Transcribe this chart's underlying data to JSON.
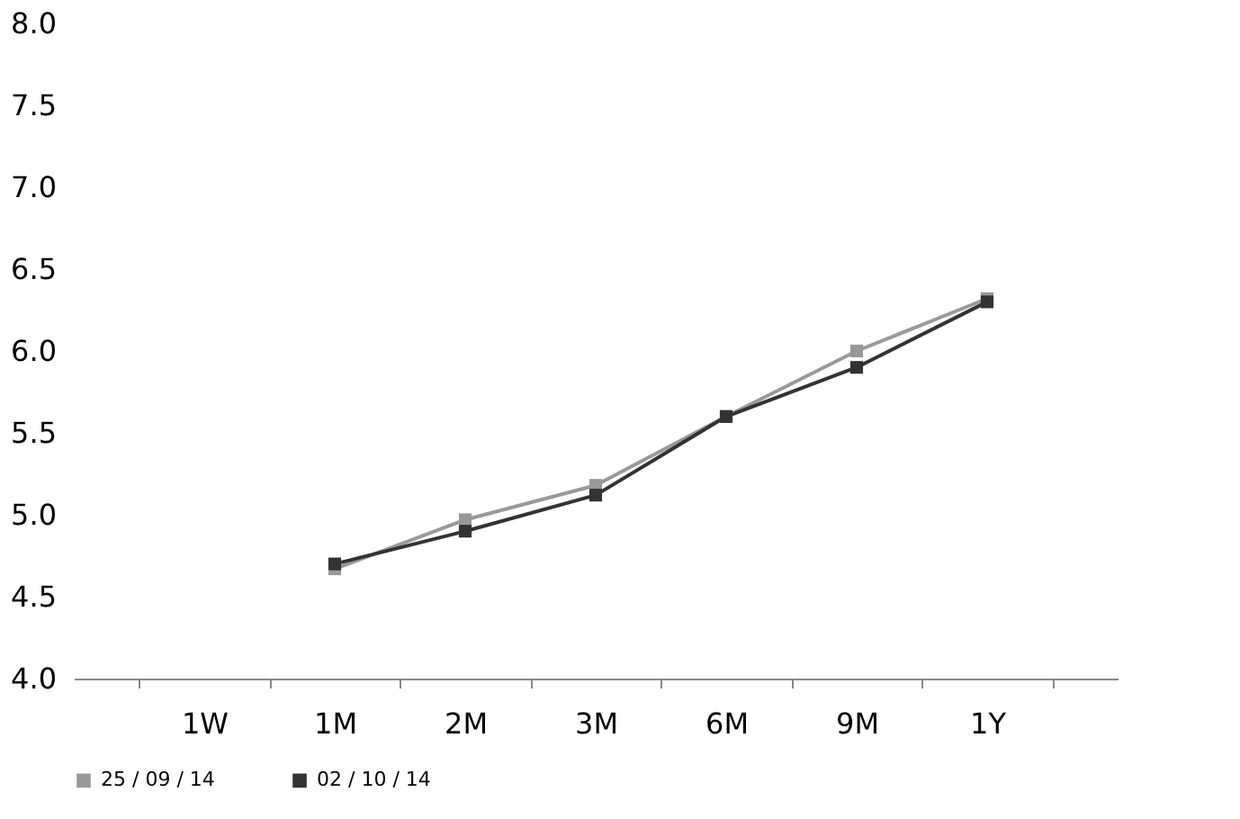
{
  "chart_data": {
    "type": "line",
    "categories": [
      "1W",
      "1M",
      "2M",
      "3M",
      "6M",
      "9M",
      "1Y"
    ],
    "series": [
      {
        "name": "25 / 09 / 14",
        "color": "#999999",
        "values": [
          null,
          4.67,
          4.97,
          5.18,
          5.6,
          6.0,
          6.32
        ]
      },
      {
        "name": "02 / 10 / 14",
        "color": "#333333",
        "values": [
          null,
          4.7,
          4.9,
          5.12,
          5.6,
          5.9,
          6.3
        ]
      }
    ],
    "ylim": [
      4.0,
      8.0
    ],
    "yticks": [
      {
        "value": 4.0,
        "label": "4.0"
      },
      {
        "value": 4.5,
        "label": "4.5"
      },
      {
        "value": 5.0,
        "label": "5.0"
      },
      {
        "value": 5.5,
        "label": "5.5"
      },
      {
        "value": 6.0,
        "label": "6.0"
      },
      {
        "value": 6.5,
        "label": "6.5"
      },
      {
        "value": 7.0,
        "label": "7.0"
      },
      {
        "value": 7.5,
        "label": "7.5"
      },
      {
        "value": 8.0,
        "label": "8.0"
      }
    ],
    "grid": false,
    "legend": "bottom",
    "marker": "square",
    "line_style": "solid"
  }
}
